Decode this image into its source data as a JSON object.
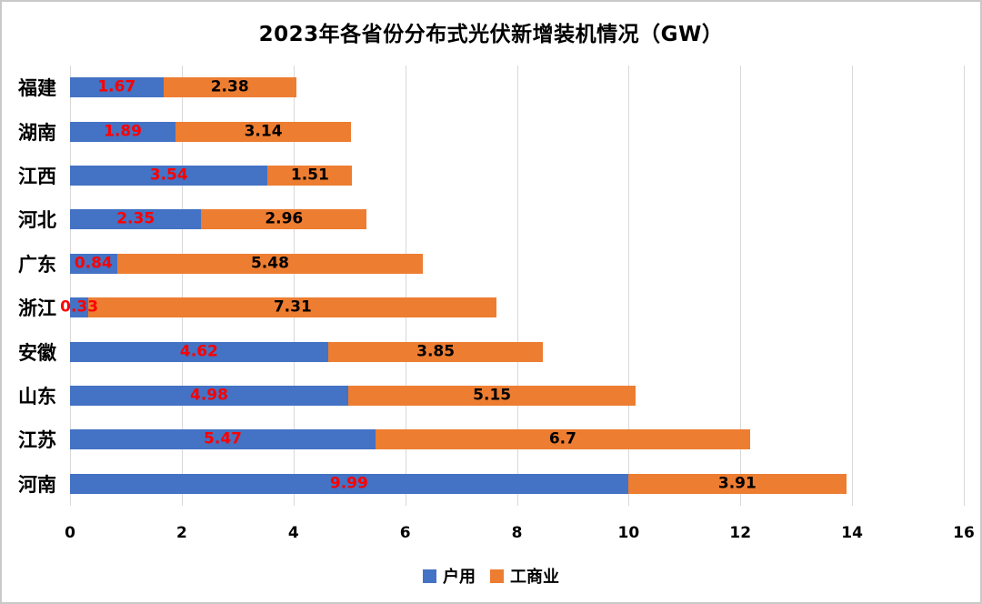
{
  "title": "2023年各省份分布式光伏新增装机情况（GW）",
  "chart_data": {
    "type": "bar",
    "orientation": "horizontal",
    "stacked": true,
    "title": "2023年各省份分布式光伏新增装机情况（GW）",
    "categories": [
      "福建",
      "湖南",
      "江西",
      "河北",
      "广东",
      "浙江",
      "安徽",
      "山东",
      "江苏",
      "河南"
    ],
    "series": [
      {
        "name": "户用",
        "color": "#4472C4",
        "label_color": "#FF0000",
        "values": [
          1.67,
          1.89,
          3.54,
          2.35,
          0.84,
          0.33,
          4.62,
          4.98,
          5.47,
          9.99
        ]
      },
      {
        "name": "工商业",
        "color": "#ED7D31",
        "label_color": "#000000",
        "values": [
          2.38,
          3.14,
          1.51,
          2.96,
          5.48,
          7.31,
          3.85,
          5.15,
          6.7,
          3.91
        ]
      }
    ],
    "xlabel": "",
    "ylabel": "",
    "xlim": [
      0,
      16
    ],
    "xticks": [
      0,
      2,
      4,
      6,
      8,
      10,
      12,
      14,
      16
    ],
    "grid": "vertical-major",
    "gridline_color": "#D9D9D9",
    "legend_position": "bottom",
    "background": "#FFFFFF"
  }
}
